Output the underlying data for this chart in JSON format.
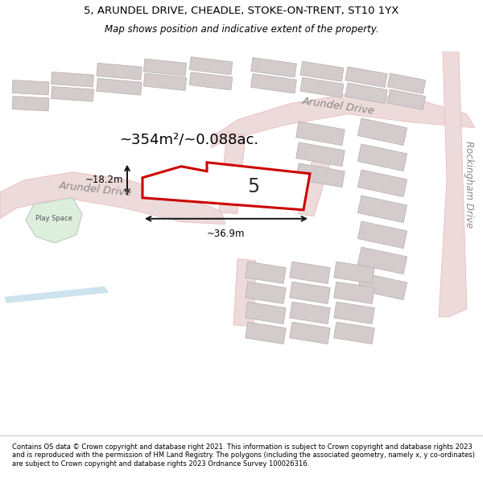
{
  "title_line1": "5, ARUNDEL DRIVE, CHEADLE, STOKE-ON-TRENT, ST10 1YX",
  "title_line2": "Map shows position and indicative extent of the property.",
  "footer_text": "Contains OS data © Crown copyright and database right 2021. This information is subject to Crown copyright and database rights 2023 and is reproduced with the permission of HM Land Registry. The polygons (including the associated geometry, namely x, y co-ordinates) are subject to Crown copyright and database rights 2023 Ordnance Survey 100026316.",
  "area_label": "~354m²/~0.088ac.",
  "width_label": "~36.9m",
  "height_label": "~18.2m",
  "number_label": "5",
  "arundel_drive_label_upper": "Arundel Drive",
  "arundel_drive_label_lower": "Arundel Drive",
  "rockingham_drive_label": "Rockingham Drive",
  "play_space_label": "Play Space",
  "map_bg": "#f7f3f3",
  "road_stroke": "#e8b8b8",
  "building_fill": "#d4cccc",
  "building_edge": "#bcb4b4",
  "plot_fill": "#ffffff",
  "plot_edge": "#cc0000",
  "green_fill": "#ddeedd",
  "green_edge": "#bbccbb",
  "water_color": "#b8d8e8",
  "dim_line_color": "#111111",
  "road_fill": "#eddada",
  "label_gray": "#888888"
}
